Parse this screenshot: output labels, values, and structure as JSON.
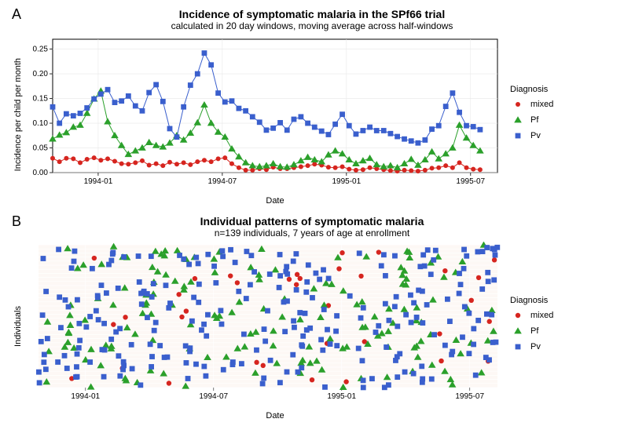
{
  "panelA": {
    "letter": "A",
    "title": "Incidence of symptomatic malaria in the SPf66 trial",
    "subtitle": "calculated in 20 day windows, moving average across half-windows",
    "ylabel": "Incidence per child per month",
    "xlabel": "Date",
    "legend_title": "Diagnosis",
    "background_color": "#ffffff",
    "panel_border_color": "#000000",
    "grid_color": "#e8e8e8",
    "x_range": [
      0,
      21.5
    ],
    "y_range": [
      0,
      0.27
    ],
    "y_ticks": [
      0.0,
      0.05,
      0.1,
      0.15,
      0.2,
      0.25
    ],
    "x_ticks": [
      {
        "pos": 2.2,
        "label": "1994-01"
      },
      {
        "pos": 8.2,
        "label": "1994-07"
      },
      {
        "pos": 14.2,
        "label": "1995-01"
      },
      {
        "pos": 20.2,
        "label": "1995-07"
      }
    ],
    "series": [
      {
        "name": "mixed",
        "color": "#d6251f",
        "marker": "circle",
        "linewidth": 1.0,
        "marker_size": 3.0,
        "data": [
          [
            0,
            0.029
          ],
          [
            0.33,
            0.022
          ],
          [
            0.66,
            0.029
          ],
          [
            1,
            0.028
          ],
          [
            1.33,
            0.02
          ],
          [
            1.66,
            0.027
          ],
          [
            2,
            0.03
          ],
          [
            2.33,
            0.025
          ],
          [
            2.66,
            0.028
          ],
          [
            3,
            0.023
          ],
          [
            3.33,
            0.018
          ],
          [
            3.66,
            0.017
          ],
          [
            4,
            0.02
          ],
          [
            4.33,
            0.024
          ],
          [
            4.66,
            0.015
          ],
          [
            5,
            0.018
          ],
          [
            5.33,
            0.014
          ],
          [
            5.66,
            0.021
          ],
          [
            6,
            0.017
          ],
          [
            6.33,
            0.02
          ],
          [
            6.66,
            0.016
          ],
          [
            7,
            0.022
          ],
          [
            7.33,
            0.025
          ],
          [
            7.66,
            0.022
          ],
          [
            8,
            0.028
          ],
          [
            8.33,
            0.03
          ],
          [
            8.66,
            0.018
          ],
          [
            9,
            0.01
          ],
          [
            9.33,
            0.005
          ],
          [
            9.66,
            0.005
          ],
          [
            10,
            0.008
          ],
          [
            10.33,
            0.006
          ],
          [
            10.66,
            0.011
          ],
          [
            11,
            0.008
          ],
          [
            11.33,
            0.008
          ],
          [
            11.66,
            0.01
          ],
          [
            12,
            0.012
          ],
          [
            12.33,
            0.014
          ],
          [
            12.66,
            0.017
          ],
          [
            13,
            0.015
          ],
          [
            13.33,
            0.011
          ],
          [
            13.66,
            0.01
          ],
          [
            14,
            0.012
          ],
          [
            14.33,
            0.007
          ],
          [
            14.66,
            0.005
          ],
          [
            15,
            0.006
          ],
          [
            15.33,
            0.01
          ],
          [
            15.66,
            0.008
          ],
          [
            16,
            0.006
          ],
          [
            16.33,
            0.004
          ],
          [
            16.66,
            0.003
          ],
          [
            17,
            0.005
          ],
          [
            17.33,
            0.004
          ],
          [
            17.66,
            0.003
          ],
          [
            18,
            0.005
          ],
          [
            18.33,
            0.009
          ],
          [
            18.66,
            0.01
          ],
          [
            19,
            0.014
          ],
          [
            19.33,
            0.01
          ],
          [
            19.66,
            0.02
          ],
          [
            20,
            0.01
          ],
          [
            20.33,
            0.007
          ],
          [
            20.66,
            0.006
          ]
        ]
      },
      {
        "name": "Pf",
        "color": "#2ba02b",
        "marker": "triangle",
        "linewidth": 1.0,
        "marker_size": 4.0,
        "data": [
          [
            0,
            0.068
          ],
          [
            0.33,
            0.076
          ],
          [
            0.66,
            0.081
          ],
          [
            1,
            0.092
          ],
          [
            1.33,
            0.096
          ],
          [
            1.66,
            0.12
          ],
          [
            2,
            0.149
          ],
          [
            2.33,
            0.165
          ],
          [
            2.66,
            0.103
          ],
          [
            3,
            0.075
          ],
          [
            3.33,
            0.055
          ],
          [
            3.66,
            0.037
          ],
          [
            4,
            0.044
          ],
          [
            4.33,
            0.05
          ],
          [
            4.66,
            0.061
          ],
          [
            5,
            0.055
          ],
          [
            5.33,
            0.052
          ],
          [
            5.66,
            0.06
          ],
          [
            6,
            0.075
          ],
          [
            6.33,
            0.066
          ],
          [
            6.66,
            0.08
          ],
          [
            7,
            0.101
          ],
          [
            7.33,
            0.137
          ],
          [
            7.66,
            0.1
          ],
          [
            8,
            0.082
          ],
          [
            8.33,
            0.072
          ],
          [
            8.66,
            0.048
          ],
          [
            9,
            0.032
          ],
          [
            9.33,
            0.02
          ],
          [
            9.66,
            0.014
          ],
          [
            10,
            0.012
          ],
          [
            10.33,
            0.014
          ],
          [
            10.66,
            0.018
          ],
          [
            11,
            0.012
          ],
          [
            11.33,
            0.011
          ],
          [
            11.66,
            0.016
          ],
          [
            12,
            0.024
          ],
          [
            12.33,
            0.031
          ],
          [
            12.66,
            0.026
          ],
          [
            13,
            0.022
          ],
          [
            13.33,
            0.036
          ],
          [
            13.66,
            0.044
          ],
          [
            14,
            0.038
          ],
          [
            14.33,
            0.026
          ],
          [
            14.66,
            0.018
          ],
          [
            15,
            0.024
          ],
          [
            15.33,
            0.029
          ],
          [
            15.66,
            0.016
          ],
          [
            16,
            0.012
          ],
          [
            16.33,
            0.014
          ],
          [
            16.66,
            0.01
          ],
          [
            17,
            0.018
          ],
          [
            17.33,
            0.027
          ],
          [
            17.66,
            0.015
          ],
          [
            18,
            0.026
          ],
          [
            18.33,
            0.042
          ],
          [
            18.66,
            0.028
          ],
          [
            19,
            0.038
          ],
          [
            19.33,
            0.05
          ],
          [
            19.66,
            0.096
          ],
          [
            20,
            0.07
          ],
          [
            20.33,
            0.055
          ],
          [
            20.66,
            0.044
          ]
        ]
      },
      {
        "name": "Pv",
        "color": "#3a5fcd",
        "marker": "square",
        "linewidth": 1.0,
        "marker_size": 3.4,
        "data": [
          [
            0,
            0.133
          ],
          [
            0.33,
            0.1
          ],
          [
            0.66,
            0.119
          ],
          [
            1,
            0.115
          ],
          [
            1.33,
            0.12
          ],
          [
            1.66,
            0.131
          ],
          [
            2,
            0.149
          ],
          [
            2.33,
            0.159
          ],
          [
            2.66,
            0.168
          ],
          [
            3,
            0.142
          ],
          [
            3.33,
            0.145
          ],
          [
            3.66,
            0.155
          ],
          [
            4,
            0.135
          ],
          [
            4.33,
            0.125
          ],
          [
            4.66,
            0.162
          ],
          [
            5,
            0.178
          ],
          [
            5.33,
            0.144
          ],
          [
            5.66,
            0.089
          ],
          [
            6,
            0.072
          ],
          [
            6.33,
            0.133
          ],
          [
            6.66,
            0.177
          ],
          [
            7,
            0.2
          ],
          [
            7.33,
            0.242
          ],
          [
            7.66,
            0.218
          ],
          [
            8,
            0.161
          ],
          [
            8.33,
            0.143
          ],
          [
            8.66,
            0.145
          ],
          [
            9,
            0.13
          ],
          [
            9.33,
            0.125
          ],
          [
            9.66,
            0.113
          ],
          [
            10,
            0.102
          ],
          [
            10.33,
            0.086
          ],
          [
            10.66,
            0.09
          ],
          [
            11,
            0.101
          ],
          [
            11.33,
            0.086
          ],
          [
            11.66,
            0.108
          ],
          [
            12,
            0.113
          ],
          [
            12.33,
            0.1
          ],
          [
            12.66,
            0.092
          ],
          [
            13,
            0.084
          ],
          [
            13.33,
            0.077
          ],
          [
            13.66,
            0.098
          ],
          [
            14,
            0.118
          ],
          [
            14.33,
            0.095
          ],
          [
            14.66,
            0.078
          ],
          [
            15,
            0.085
          ],
          [
            15.33,
            0.092
          ],
          [
            15.66,
            0.085
          ],
          [
            16,
            0.085
          ],
          [
            16.33,
            0.079
          ],
          [
            16.66,
            0.073
          ],
          [
            17,
            0.068
          ],
          [
            17.33,
            0.064
          ],
          [
            17.66,
            0.06
          ],
          [
            18,
            0.066
          ],
          [
            18.33,
            0.088
          ],
          [
            18.66,
            0.095
          ],
          [
            19,
            0.134
          ],
          [
            19.33,
            0.161
          ],
          [
            19.66,
            0.122
          ],
          [
            20,
            0.095
          ],
          [
            20.33,
            0.093
          ],
          [
            20.66,
            0.087
          ]
        ]
      }
    ]
  },
  "panelB": {
    "letter": "B",
    "title": "Individual patterns of symptomatic malaria",
    "subtitle": "n=139 individuals, 7 years of age at enrollment",
    "ylabel": "Individuals",
    "xlabel": "Date",
    "legend_title": "Diagnosis",
    "background_color": "#fdf8f5",
    "grid_color": "#ffffff",
    "y_range": [
      0,
      140
    ],
    "x_range": [
      0,
      21.5
    ],
    "x_ticks": [
      {
        "pos": 2.2,
        "label": "1994-01"
      },
      {
        "pos": 8.2,
        "label": "1994-07"
      },
      {
        "pos": 14.2,
        "label": "1995-01"
      },
      {
        "pos": 20.2,
        "label": "1995-07"
      }
    ],
    "series": [
      {
        "name": "mixed",
        "color": "#d6251f",
        "marker": "circle",
        "marker_size": 3.2
      },
      {
        "name": "Pf",
        "color": "#2ba02b",
        "marker": "triangle",
        "marker_size": 4.0
      },
      {
        "name": "Pv",
        "color": "#3a5fcd",
        "marker": "square",
        "marker_size": 3.4
      }
    ],
    "n_random_points": {
      "mixed": 35,
      "Pf": 160,
      "Pv": 260
    },
    "random_seed": 42
  }
}
